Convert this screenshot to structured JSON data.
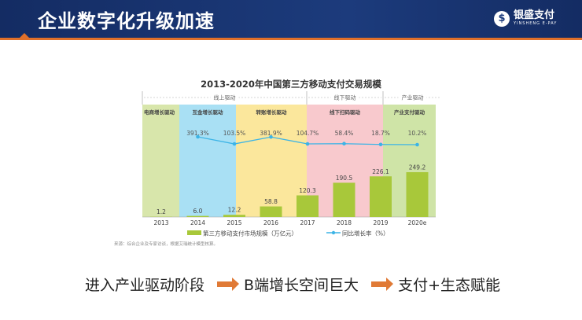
{
  "header": {
    "title": "企业数字化升级加速",
    "logo_cn": "银盛支付",
    "logo_en": "YINSHENG E-PAY"
  },
  "chart_data": {
    "type": "bar",
    "title": "2013-2020年中国第三方移动支付交易规模",
    "categories": [
      "2013",
      "2014",
      "2015",
      "2016",
      "2017",
      "2018",
      "2019",
      "2020e"
    ],
    "series": [
      {
        "name": "第三方移动支付市场规模（万亿元）",
        "type": "bar",
        "values": [
          1.2,
          6.0,
          12.2,
          58.8,
          120.3,
          190.5,
          226.1,
          249.2
        ],
        "labels": [
          "1.2",
          "6.0",
          "12.2",
          "58.8",
          "120.3",
          "190.5",
          "226.1",
          "249.2"
        ],
        "color": "#a8c83a"
      },
      {
        "name": "同比增长率（%）",
        "type": "line",
        "x": [
          "2014",
          "2015",
          "2016",
          "2017",
          "2018",
          "2019",
          "2020e"
        ],
        "values": [
          391.3,
          103.5,
          381.9,
          104.7,
          58.4,
          18.7,
          10.2
        ],
        "labels": [
          "391.3%",
          "103.5%",
          "381.9%",
          "104.7%",
          "58.4%",
          "18.7%",
          "10.2%"
        ],
        "color": "#3cb4e6"
      }
    ],
    "phases_top": [
      "线上驱动",
      "线下驱动",
      "产业驱动"
    ],
    "bands": [
      {
        "label": "电商增长驱动",
        "color": "#d8e6ab"
      },
      {
        "label": "互金增长驱动",
        "color": "#a9e0f4"
      },
      {
        "label": "转账增长驱动",
        "color": "#fbe79c"
      },
      {
        "label": "线下扫码驱动",
        "color": "#f8c9cd"
      },
      {
        "label": "产业支付驱动",
        "color": "#cfe4a7"
      }
    ],
    "legend_placement": "bottom",
    "source": "来源：综合企业及专家访谈，根据艾瑞统计模型核算。"
  },
  "bottom": {
    "step1": "进入产业驱动阶段",
    "step2": "B端增长空间巨大",
    "step3": "支付+生态赋能"
  }
}
